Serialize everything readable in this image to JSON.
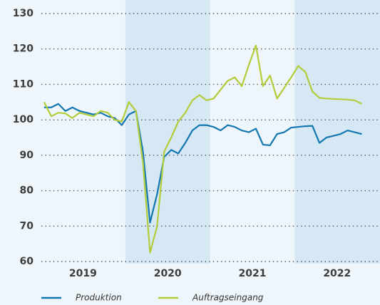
{
  "chart_data": {
    "type": "line",
    "categories": [
      null,
      null,
      null,
      null,
      null,
      null,
      "2019",
      null,
      null,
      null,
      null,
      null,
      null,
      null,
      null,
      null,
      null,
      null,
      "2020",
      null,
      null,
      null,
      null,
      null,
      null,
      null,
      null,
      null,
      null,
      null,
      "2021",
      null,
      null,
      null,
      null,
      null,
      null,
      null,
      null,
      null,
      null,
      null,
      "2022",
      null,
      null,
      null
    ],
    "series": [
      {
        "name": "Produktion",
        "color": "#1277b0",
        "values": [
          103.5,
          103.5,
          104.5,
          102.5,
          103.5,
          102.5,
          102,
          101.5,
          102,
          101,
          100.5,
          98.5,
          101.5,
          102.5,
          91,
          71,
          79,
          89.5,
          91.5,
          90.5,
          93.5,
          97,
          98.5,
          98.5,
          98,
          97,
          98.5,
          98,
          97,
          96.5,
          97.5,
          93,
          92.8,
          96,
          96.5,
          97.8,
          98,
          98.2,
          98.3,
          93.5,
          95,
          95.5,
          96,
          97,
          96.5,
          96
        ]
      },
      {
        "name": "Auftragseingang",
        "color": "#b3cc3a",
        "values": [
          105,
          101,
          102,
          101.8,
          100.5,
          102,
          101.5,
          101,
          102.5,
          102,
          100,
          99.5,
          105,
          102.5,
          88,
          62.5,
          70,
          91,
          95,
          99.5,
          102,
          105.5,
          107,
          105.5,
          106,
          108.5,
          111,
          112,
          109.5,
          115.5,
          121,
          109.5,
          112.5,
          106,
          109,
          112,
          115.2,
          113.5,
          108,
          106.2,
          106,
          105.9,
          105.8,
          105.7,
          105.5,
          104.5
        ]
      }
    ],
    "ylim": [
      60,
      130
    ],
    "yticks": [
      60,
      70,
      80,
      90,
      100,
      110,
      120,
      130
    ],
    "grid": true
  }
}
